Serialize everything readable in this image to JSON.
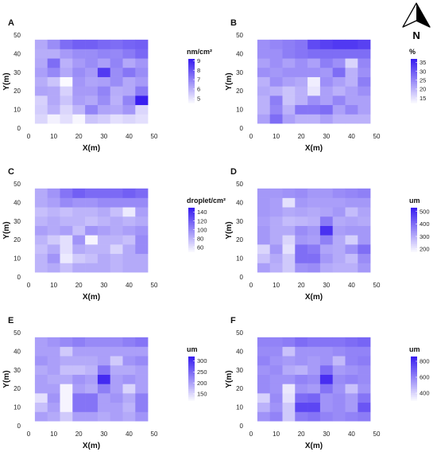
{
  "compass": {
    "label": "N"
  },
  "chart_data": [
    {
      "type": "heatmap",
      "panel": "A",
      "xlabel": "X(m)",
      "ylabel": "Y(m)",
      "xlim": [
        0,
        50
      ],
      "ylim": [
        0,
        50
      ],
      "xticks": [
        "0",
        "10",
        "20",
        "30",
        "40",
        "50"
      ],
      "yticks": [
        "0",
        "10",
        "20",
        "30",
        "40",
        "50"
      ],
      "x_centers": [
        5,
        10,
        15,
        20,
        25,
        30,
        35,
        40,
        45
      ],
      "y_centers": [
        5,
        10,
        15,
        20,
        25,
        30,
        35,
        40,
        45
      ],
      "legend": {
        "title": "nm/cm²",
        "ticks": [
          "5",
          "6",
          "7",
          "8",
          "9"
        ],
        "min": 4.3,
        "max": 9.2
      },
      "color_low": "#ffffff",
      "color_high": "#3a1ff0",
      "values": [
        [
          5.2,
          4.6,
          5.0,
          4.5,
          5.6,
          5.4,
          5.0,
          5.2,
          5.0
        ],
        [
          5.4,
          6.0,
          5.2,
          5.9,
          7.0,
          6.3,
          6.2,
          6.6,
          5.2
        ],
        [
          5.3,
          6.2,
          5.6,
          6.4,
          6.2,
          6.8,
          6.0,
          7.0,
          9.2
        ],
        [
          6.3,
          6.2,
          5.3,
          6.5,
          6.5,
          7.0,
          6.1,
          6.2,
          7.2
        ],
        [
          6.1,
          5.6,
          4.4,
          6.6,
          6.3,
          6.4,
          6.8,
          6.2,
          6.5
        ],
        [
          6.4,
          6.9,
          6.2,
          6.8,
          6.5,
          8.6,
          6.8,
          7.3,
          6.8
        ],
        [
          6.2,
          7.5,
          6.0,
          6.5,
          6.8,
          6.4,
          7.0,
          6.2,
          6.6
        ],
        [
          6.1,
          6.1,
          6.5,
          6.8,
          6.8,
          7.0,
          6.9,
          7.2,
          7.6
        ],
        [
          6.2,
          6.8,
          7.5,
          7.8,
          7.8,
          7.6,
          7.5,
          7.7,
          7.8
        ]
      ]
    },
    {
      "type": "heatmap",
      "panel": "B",
      "xlabel": "X(m)",
      "ylabel": "Y(m)",
      "xlim": [
        0,
        50
      ],
      "ylim": [
        0,
        50
      ],
      "xticks": [
        "0",
        "10",
        "20",
        "30",
        "40",
        "50"
      ],
      "yticks": [
        "0",
        "10",
        "20",
        "30",
        "40",
        "50"
      ],
      "x_centers": [
        5,
        10,
        15,
        20,
        25,
        30,
        35,
        40,
        45
      ],
      "y_centers": [
        5,
        10,
        15,
        20,
        25,
        30,
        35,
        40,
        45
      ],
      "legend": {
        "title": "%",
        "ticks": [
          "15",
          "20",
          "25",
          "30",
          "35"
        ],
        "min": 11,
        "max": 37
      },
      "color_low": "#ffffff",
      "color_high": "#3a1ff0",
      "values": [
        [
          22,
          28,
          22,
          20,
          20,
          22,
          20,
          20,
          20
        ],
        [
          20,
          25,
          20,
          27,
          27,
          28,
          22,
          25,
          22
        ],
        [
          20,
          26,
          18,
          20,
          24,
          22,
          25,
          22,
          22
        ],
        [
          21,
          20,
          18,
          20,
          14,
          22,
          20,
          22,
          24
        ],
        [
          20,
          24,
          22,
          21,
          13,
          24,
          22,
          20,
          26
        ],
        [
          24,
          23,
          24,
          24,
          24,
          23,
          28,
          20,
          24
        ],
        [
          22,
          24,
          22,
          24,
          22,
          26,
          24,
          16,
          25
        ],
        [
          24,
          24,
          26,
          27,
          28,
          28,
          28,
          28,
          28
        ],
        [
          24,
          25,
          26,
          27,
          32,
          33,
          34,
          34,
          33
        ]
      ]
    },
    {
      "type": "heatmap",
      "panel": "C",
      "xlabel": "X(m)",
      "ylabel": "Y(m)",
      "xlim": [
        0,
        50
      ],
      "ylim": [
        0,
        50
      ],
      "xticks": [
        "0",
        "10",
        "20",
        "30",
        "40",
        "50"
      ],
      "yticks": [
        "0",
        "10",
        "20",
        "30",
        "40",
        "50"
      ],
      "x_centers": [
        5,
        10,
        15,
        20,
        25,
        30,
        35,
        40,
        45
      ],
      "y_centers": [
        5,
        10,
        15,
        20,
        25,
        30,
        35,
        40,
        45
      ],
      "legend": {
        "title": "droplet/cm²",
        "ticks": [
          "60",
          "80",
          "100",
          "120",
          "140"
        ],
        "min": 45,
        "max": 150
      },
      "color_low": "#ffffff",
      "color_high": "#3a1ff0",
      "values": [
        [
          80,
          85,
          75,
          85,
          85,
          85,
          80,
          85,
          85
        ],
        [
          80,
          95,
          55,
          70,
          75,
          85,
          80,
          85,
          85
        ],
        [
          75,
          85,
          60,
          85,
          80,
          80,
          65,
          85,
          100
        ],
        [
          80,
          70,
          60,
          95,
          50,
          80,
          80,
          75,
          100
        ],
        [
          90,
          85,
          90,
          75,
          95,
          90,
          85,
          90,
          95
        ],
        [
          80,
          85,
          80,
          80,
          75,
          80,
          85,
          80,
          85
        ],
        [
          75,
          80,
          75,
          80,
          80,
          85,
          75,
          55,
          90
        ],
        [
          85,
          90,
          100,
          95,
          95,
          100,
          100,
          100,
          100
        ],
        [
          85,
          95,
          110,
          120,
          115,
          115,
          115,
          120,
          115
        ]
      ]
    },
    {
      "type": "heatmap",
      "panel": "D",
      "xlabel": "X(m)",
      "ylabel": "Y(m)",
      "xlim": [
        0,
        50
      ],
      "ylim": [
        0,
        50
      ],
      "xticks": [
        "0",
        "10",
        "20",
        "30",
        "40",
        "50"
      ],
      "yticks": [
        "0",
        "10",
        "20",
        "30",
        "40",
        "50"
      ],
      "x_centers": [
        5,
        10,
        15,
        20,
        25,
        30,
        35,
        40,
        45
      ],
      "y_centers": [
        5,
        10,
        15,
        20,
        25,
        30,
        35,
        40,
        45
      ],
      "legend": {
        "title": "um",
        "ticks": [
          "200",
          "300",
          "400",
          "500"
        ],
        "min": 160,
        "max": 530
      },
      "color_low": "#ffffff",
      "color_high": "#3a1ff0",
      "values": [
        [
          320,
          290,
          250,
          340,
          350,
          300,
          290,
          290,
          330
        ],
        [
          260,
          300,
          250,
          400,
          400,
          330,
          300,
          270,
          350
        ],
        [
          230,
          330,
          210,
          400,
          380,
          310,
          300,
          340,
          400
        ],
        [
          330,
          300,
          230,
          330,
          320,
          370,
          300,
          240,
          330
        ],
        [
          330,
          300,
          300,
          350,
          330,
          500,
          320,
          330,
          330
        ],
        [
          320,
          300,
          270,
          280,
          290,
          380,
          300,
          310,
          300
        ],
        [
          330,
          320,
          300,
          310,
          300,
          310,
          330,
          270,
          310
        ],
        [
          330,
          320,
          210,
          330,
          320,
          320,
          320,
          330,
          330
        ],
        [
          330,
          330,
          340,
          350,
          330,
          330,
          350,
          360,
          370
        ]
      ]
    },
    {
      "type": "heatmap",
      "panel": "E",
      "xlabel": "X(m)",
      "ylabel": "Y(m)",
      "xlim": [
        0,
        50
      ],
      "ylim": [
        0,
        50
      ],
      "xticks": [
        "0",
        "10",
        "20",
        "30",
        "40",
        "50"
      ],
      "yticks": [
        "0",
        "10",
        "20",
        "30",
        "40",
        "50"
      ],
      "x_centers": [
        5,
        10,
        15,
        20,
        25,
        30,
        35,
        40,
        45
      ],
      "y_centers": [
        5,
        10,
        15,
        20,
        25,
        30,
        35,
        40,
        45
      ],
      "legend": {
        "title": "um",
        "ticks": [
          "150",
          "200",
          "250",
          "300"
        ],
        "min": 110,
        "max": 320
      },
      "color_low": "#ffffff",
      "color_high": "#3a1ff0",
      "values": [
        [
          200,
          190,
          160,
          200,
          200,
          190,
          200,
          190,
          210
        ],
        [
          170,
          200,
          120,
          240,
          240,
          200,
          200,
          180,
          230
        ],
        [
          140,
          210,
          120,
          240,
          240,
          200,
          210,
          190,
          230
        ],
        [
          200,
          200,
          120,
          200,
          190,
          230,
          200,
          150,
          200
        ],
        [
          200,
          190,
          190,
          210,
          200,
          310,
          200,
          210,
          200
        ],
        [
          190,
          200,
          170,
          170,
          180,
          240,
          190,
          190,
          200
        ],
        [
          210,
          200,
          190,
          190,
          190,
          200,
          160,
          210,
          220
        ],
        [
          200,
          200,
          160,
          200,
          200,
          200,
          200,
          200,
          200
        ],
        [
          200,
          210,
          220,
          230,
          220,
          220,
          220,
          230,
          240
        ]
      ]
    },
    {
      "type": "heatmap",
      "panel": "F",
      "xlabel": "X(m)",
      "ylabel": "Y(m)",
      "xlim": [
        0,
        50
      ],
      "ylim": [
        0,
        50
      ],
      "xticks": [
        "0",
        "10",
        "20",
        "30",
        "40",
        "50"
      ],
      "yticks": [
        "0",
        "10",
        "20",
        "30",
        "40",
        "50"
      ],
      "x_centers": [
        5,
        10,
        15,
        20,
        25,
        30,
        35,
        40,
        45
      ],
      "y_centers": [
        5,
        10,
        15,
        20,
        25,
        30,
        35,
        40,
        45
      ],
      "legend": {
        "title": "um",
        "ticks": [
          "400",
          "600",
          "800"
        ],
        "min": 280,
        "max": 860
      },
      "color_low": "#ffffff",
      "color_high": "#3a1ff0",
      "values": [
        [
          560,
          600,
          420,
          620,
          640,
          600,
          580,
          600,
          620
        ],
        [
          480,
          560,
          420,
          760,
          760,
          560,
          580,
          540,
          720
        ],
        [
          400,
          580,
          360,
          660,
          680,
          560,
          580,
          540,
          640
        ],
        [
          580,
          560,
          340,
          560,
          540,
          640,
          560,
          440,
          560
        ],
        [
          580,
          560,
          560,
          600,
          580,
          820,
          580,
          600,
          580
        ],
        [
          560,
          580,
          500,
          480,
          540,
          660,
          540,
          560,
          580
        ],
        [
          600,
          560,
          540,
          560,
          540,
          560,
          460,
          600,
          620
        ],
        [
          580,
          580,
          440,
          560,
          560,
          560,
          580,
          600,
          600
        ],
        [
          600,
          600,
          620,
          660,
          640,
          640,
          640,
          660,
          680
        ]
      ]
    }
  ]
}
